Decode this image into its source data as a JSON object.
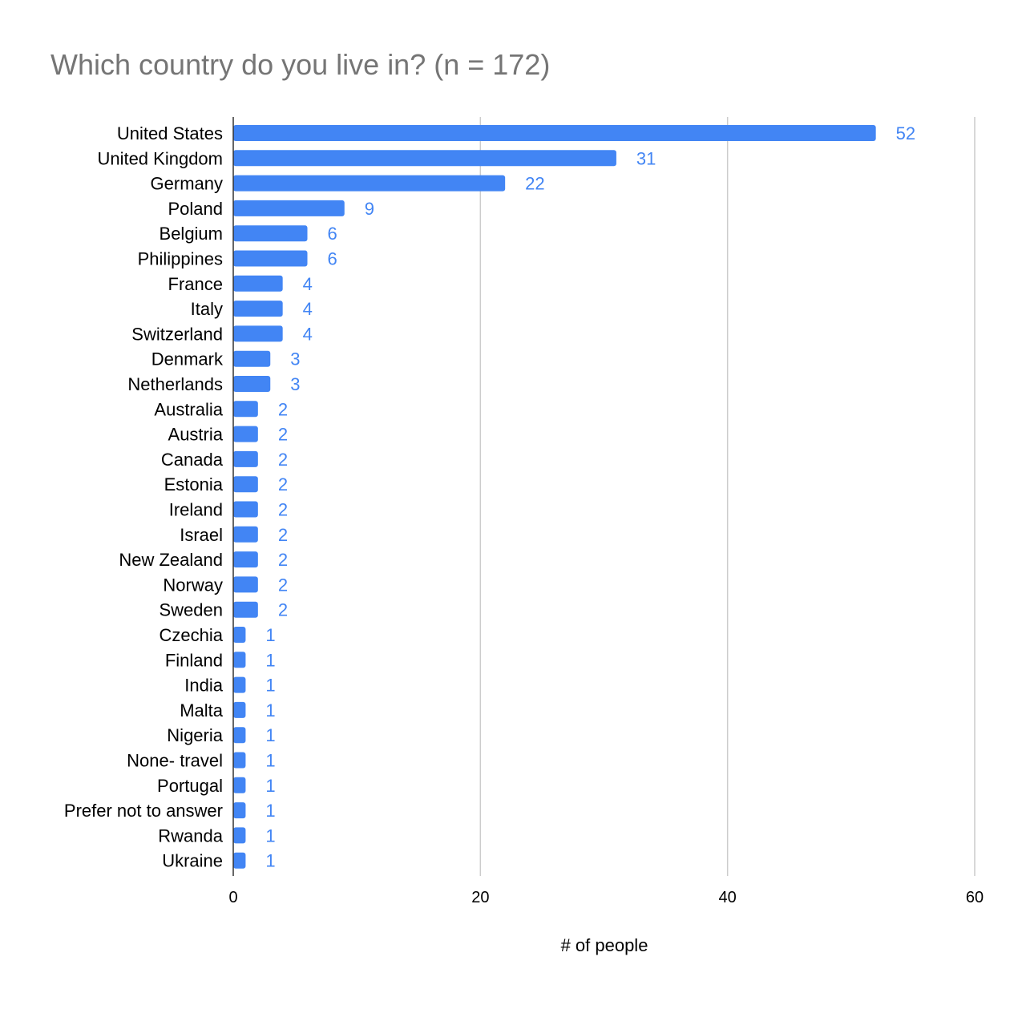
{
  "chart_data": {
    "type": "bar",
    "orientation": "horizontal",
    "title": "Which country do you live in? (n = 172)",
    "xlabel": "# of people",
    "ylabel": "",
    "xlim": [
      0,
      60
    ],
    "xticks": [
      0,
      20,
      40,
      60
    ],
    "grid": true,
    "legend": "none",
    "bar_color": "#4285f4",
    "data_label_color": "#4285f4",
    "categories": [
      "United States",
      "United Kingdom",
      "Germany",
      "Poland",
      "Belgium",
      "Philippines",
      "France",
      "Italy",
      "Switzerland",
      "Denmark",
      "Netherlands",
      "Australia",
      "Austria",
      "Canada",
      "Estonia",
      "Ireland",
      "Israel",
      "New Zealand",
      "Norway",
      "Sweden",
      "Czechia",
      "Finland",
      "India",
      "Malta",
      "Nigeria",
      "None- travel",
      "Portugal",
      "Prefer not to answer",
      "Rwanda",
      "Ukraine"
    ],
    "values": [
      52,
      31,
      22,
      9,
      6,
      6,
      4,
      4,
      4,
      3,
      3,
      2,
      2,
      2,
      2,
      2,
      2,
      2,
      2,
      2,
      1,
      1,
      1,
      1,
      1,
      1,
      1,
      1,
      1,
      1
    ]
  }
}
